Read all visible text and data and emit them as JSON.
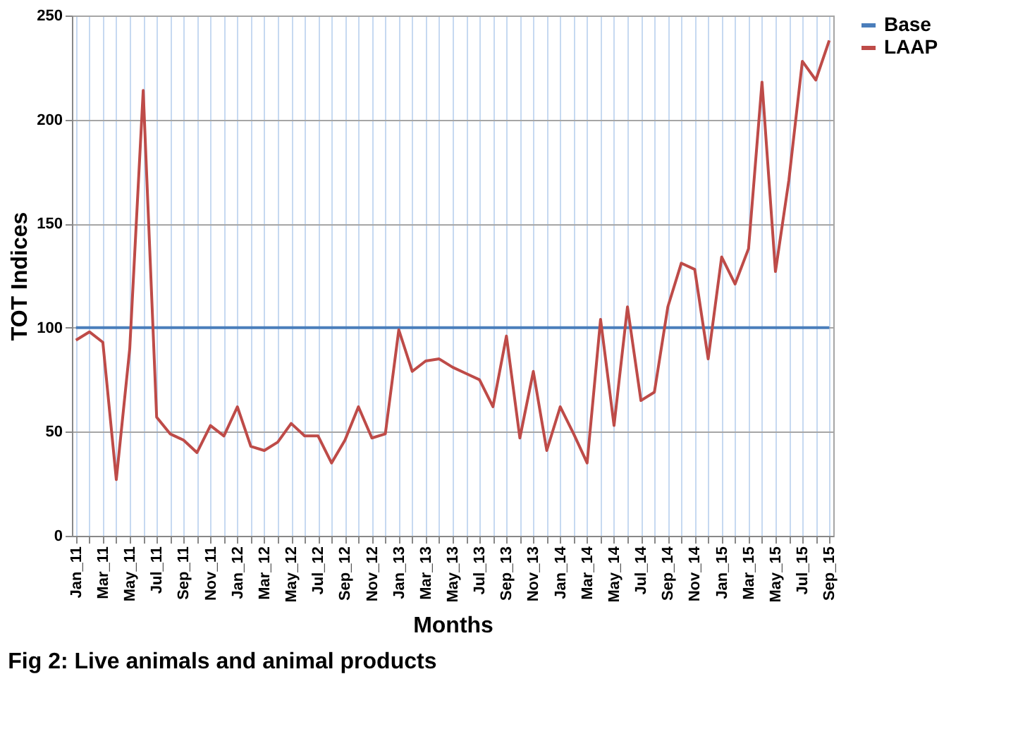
{
  "chart_data": {
    "type": "line",
    "xlabel": "Months",
    "ylabel": "TOT Indices",
    "categories": [
      "Jan_11",
      null,
      "Mar_11",
      null,
      "May_11",
      null,
      "Jul_11",
      null,
      "Sep_11",
      null,
      "Nov_11",
      null,
      "Jan_12",
      null,
      "Mar_12",
      null,
      "May_12",
      null,
      "Jul_12",
      null,
      "Sep_12",
      null,
      "Nov_12",
      null,
      "Jan_13",
      null,
      "Mar_13",
      null,
      "May_13",
      null,
      "Jul_13",
      null,
      "Sep_13",
      null,
      "Nov_13",
      null,
      "Jan_14",
      null,
      "Mar_14",
      null,
      "May_14",
      null,
      "Jul_14",
      null,
      "Sep_14",
      null,
      "Nov_14",
      null,
      "Jan_15",
      null,
      "Mar_15",
      null,
      "May_15",
      null,
      "Jul_15",
      null,
      "Sep_15"
    ],
    "series": [
      {
        "name": "Base",
        "color": "#4a7ebb",
        "values": [
          100,
          100,
          100,
          100,
          100,
          100,
          100,
          100,
          100,
          100,
          100,
          100,
          100,
          100,
          100,
          100,
          100,
          100,
          100,
          100,
          100,
          100,
          100,
          100,
          100,
          100,
          100,
          100,
          100,
          100,
          100,
          100,
          100,
          100,
          100,
          100,
          100,
          100,
          100,
          100,
          100,
          100,
          100,
          100,
          100,
          100,
          100,
          100,
          100,
          100,
          100,
          100,
          100,
          100,
          100,
          100,
          100
        ]
      },
      {
        "name": "LAAP",
        "color": "#be4b48",
        "values": [
          94,
          98,
          93,
          27,
          90,
          214,
          57,
          49,
          46,
          40,
          53,
          48,
          62,
          43,
          41,
          45,
          54,
          48,
          48,
          35,
          46,
          62,
          47,
          49,
          99,
          79,
          84,
          85,
          81,
          78,
          75,
          62,
          96,
          47,
          79,
          41,
          62,
          49,
          35,
          104,
          53,
          110,
          65,
          69,
          110,
          131,
          128,
          85,
          134,
          121,
          138,
          218,
          127,
          171,
          228,
          219,
          238
        ]
      }
    ],
    "ylim": [
      0,
      250
    ],
    "yticks": [
      0,
      50,
      100,
      150,
      200,
      250
    ],
    "grid": true,
    "legend": "right",
    "line_style": "solid",
    "marker": "none",
    "annotations": [
      "Fig 2: Live animals and animal products"
    ]
  }
}
